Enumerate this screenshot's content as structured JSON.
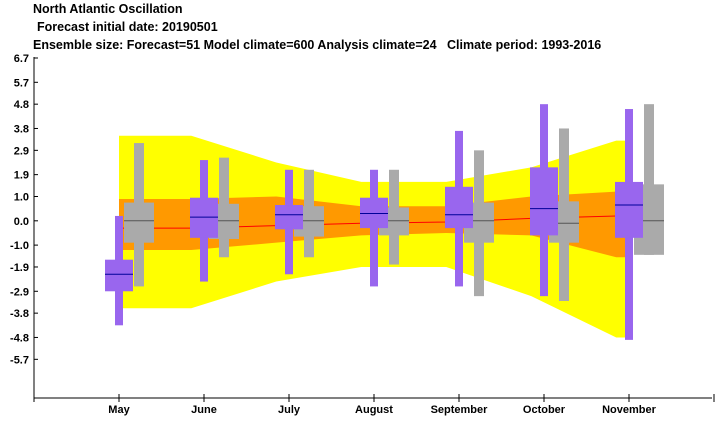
{
  "header": {
    "title": "North Atlantic Oscillation",
    "subtitle": "Forecast initial date: 20190501",
    "info": "Ensemble size: Forecast=51 Model climate=600 Analysis climate=24   Climate period: 1993-2016"
  },
  "colors": {
    "yellow": "#ffff00",
    "orange": "#ff9900",
    "gray": "#aaaaaa",
    "purple": "#9966ee",
    "median_line": "#000099",
    "climate_median": "#555555",
    "trend_line": "#ff0000"
  },
  "chart_data": {
    "type": "box",
    "title": "North Atlantic Oscillation",
    "categories": [
      "May",
      "June",
      "July",
      "August",
      "September",
      "October",
      "November"
    ],
    "yticks": [
      "6.7",
      "5.7",
      "4.8",
      "3.8",
      "2.9",
      "1.9",
      "1.0",
      "0.0",
      "-1.0",
      "-1.9",
      "-2.9",
      "-3.8",
      "-4.8",
      "-5.7"
    ],
    "ylim": [
      -7.0,
      6.7
    ],
    "model_climate": [
      {
        "min": -2.7,
        "q1": -0.9,
        "median": 0.0,
        "q3": 0.75,
        "max": 3.2
      },
      {
        "min": -1.5,
        "q1": -0.75,
        "median": 0.0,
        "q3": 0.7,
        "max": 2.6
      },
      {
        "min": -1.5,
        "q1": -0.65,
        "median": 0.0,
        "q3": 0.6,
        "max": 2.1
      },
      {
        "min": -1.8,
        "q1": -0.6,
        "median": 0.0,
        "q3": 0.55,
        "max": 2.1
      },
      {
        "min": -3.1,
        "q1": -0.9,
        "median": 0.0,
        "q3": 0.75,
        "max": 2.9
      },
      {
        "min": -3.3,
        "q1": -0.9,
        "median": -0.1,
        "q3": 0.8,
        "max": 3.8
      },
      {
        "min": -1.4,
        "q1": -1.4,
        "median": 0.0,
        "q3": 1.5,
        "max": 4.8
      }
    ],
    "forecast": [
      {
        "min": -4.3,
        "q1": -2.9,
        "median": -2.2,
        "q3": -1.6,
        "max": 0.2
      },
      {
        "min": -2.5,
        "q1": -0.7,
        "median": 0.15,
        "q3": 0.95,
        "max": 2.5
      },
      {
        "min": -2.2,
        "q1": -0.35,
        "median": 0.25,
        "q3": 0.65,
        "max": 2.1
      },
      {
        "min": -2.7,
        "q1": -0.3,
        "median": 0.3,
        "q3": 0.95,
        "max": 2.1
      },
      {
        "min": -2.7,
        "q1": -0.3,
        "median": 0.25,
        "q3": 1.4,
        "max": 3.7
      },
      {
        "min": -3.1,
        "q1": -0.6,
        "median": 0.5,
        "q3": 2.2,
        "max": 4.8
      },
      {
        "min": -4.9,
        "q1": -0.7,
        "median": 0.65,
        "q3": 1.6,
        "max": 4.6
      }
    ],
    "analysis_band_outer": {
      "x_positions": [
        0.0,
        0.85,
        1.85,
        2.85,
        3.85,
        4.85,
        5.85,
        6.0
      ],
      "upper": [
        3.5,
        3.5,
        2.4,
        1.6,
        1.6,
        2.2,
        3.3,
        3.3
      ],
      "lower": [
        -3.6,
        -3.6,
        -2.5,
        -1.9,
        -1.9,
        -3.1,
        -4.8,
        -4.8
      ]
    },
    "analysis_band_inner": {
      "x_positions": [
        0.0,
        0.85,
        1.85,
        2.85,
        3.85,
        4.85,
        5.85,
        6.0
      ],
      "upper": [
        0.9,
        0.9,
        1.0,
        0.6,
        0.6,
        1.0,
        1.2,
        1.2
      ],
      "lower": [
        -1.2,
        -1.2,
        -0.9,
        -0.6,
        -0.5,
        -0.6,
        -1.5,
        -1.5
      ]
    },
    "analysis_median": {
      "x_positions": [
        0.0,
        0.85,
        1.85,
        2.85,
        3.85,
        4.85,
        5.85,
        6.0
      ],
      "values": [
        -0.3,
        -0.3,
        -0.2,
        -0.1,
        -0.05,
        0.1,
        0.2,
        0.2
      ]
    }
  }
}
